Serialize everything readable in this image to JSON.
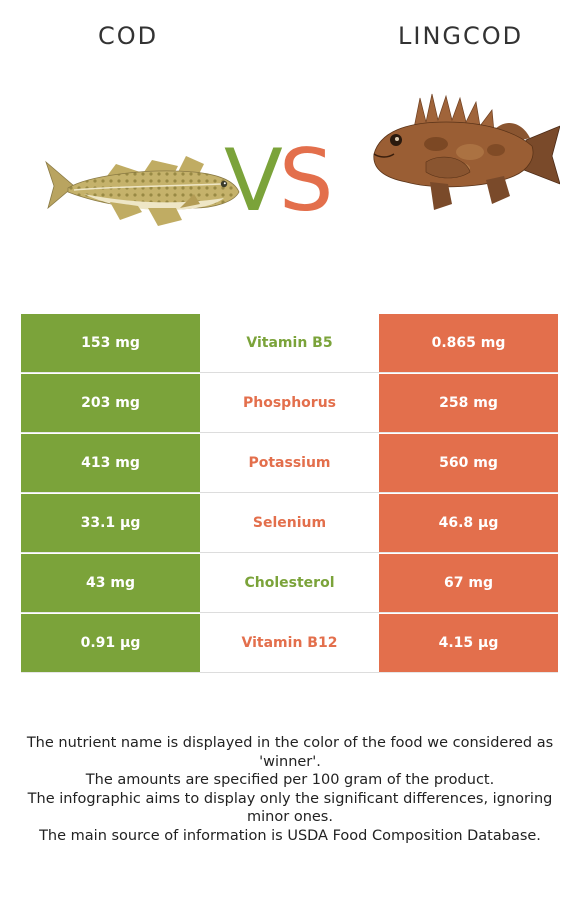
{
  "food_left": {
    "name": "COD",
    "image": "cod-fish-image",
    "color": "#7ba33a"
  },
  "food_right": {
    "name": "LINGCOD",
    "image": "lingcod-fish-image",
    "color": "#e36f4c"
  },
  "vs": {
    "v": "V",
    "s": "S"
  },
  "rows": [
    {
      "nutrient": "Vitamin B5",
      "left": "153 mg",
      "right": "0.865 mg",
      "winner": "left"
    },
    {
      "nutrient": "Phosphorus",
      "left": "203 mg",
      "right": "258 mg",
      "winner": "right"
    },
    {
      "nutrient": "Potassium",
      "left": "413 mg",
      "right": "560 mg",
      "winner": "right"
    },
    {
      "nutrient": "Selenium",
      "left": "33.1 µg",
      "right": "46.8 µg",
      "winner": "right"
    },
    {
      "nutrient": "Cholesterol",
      "left": "43 mg",
      "right": "67 mg",
      "winner": "left"
    },
    {
      "nutrient": "Vitamin B12",
      "left": "0.91 µg",
      "right": "4.15 µg",
      "winner": "right"
    }
  ],
  "notes": [
    "The nutrient name is displayed in the color of the food we considered as 'winner'.",
    "The amounts are specified per 100 gram of the product.",
    "The infographic aims to display only the significant differences, ignoring minor ones.",
    "The main source of information is USDA Food Composition Database."
  ]
}
